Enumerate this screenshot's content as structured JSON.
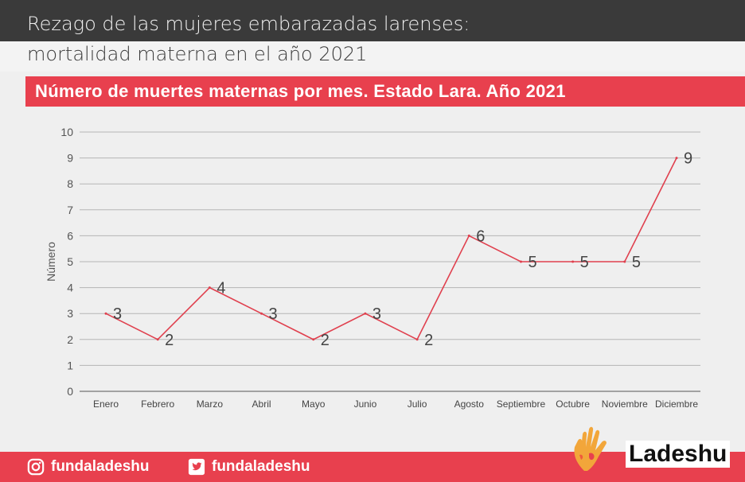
{
  "header": {
    "title_line1": "Rezago de las mujeres embarazadas larenses:",
    "title_line2": "mortalidad materna en el año 2021"
  },
  "banner": {
    "text": "Número de muertes maternas por mes. Estado Lara. Año 2021"
  },
  "chart_data": {
    "type": "line",
    "title": "Número de muertes maternas por mes. Estado Lara. Año 2021",
    "xlabel": "",
    "ylabel": "Número",
    "categories": [
      "Enero",
      "Febrero",
      "Marzo",
      "Abril",
      "Mayo",
      "Junio",
      "Julio",
      "Agosto",
      "Septiembre",
      "Octubre",
      "Noviembre",
      "Diciembre"
    ],
    "series": [
      {
        "values": [
          3,
          2,
          4,
          3,
          2,
          3,
          2,
          6,
          5,
          5,
          5,
          9
        ]
      }
    ],
    "ylim": [
      0,
      10
    ],
    "yticks": [
      0,
      1,
      2,
      3,
      4,
      5,
      6,
      7,
      8,
      9,
      10
    ],
    "grid": true,
    "data_labels": true,
    "colors": {
      "line": "#e0404e",
      "grid": "#b5b5b5",
      "text": "#444444"
    }
  },
  "footer": {
    "instagram_handle": "fundaladeshu",
    "twitter_handle": "fundaladeshu",
    "icons": {
      "instagram": "instagram-icon",
      "twitter": "twitter-icon"
    }
  },
  "logo": {
    "text": "Ladeshu"
  },
  "colors": {
    "accent": "#e8404e",
    "header_dark": "#3a3a3a"
  }
}
